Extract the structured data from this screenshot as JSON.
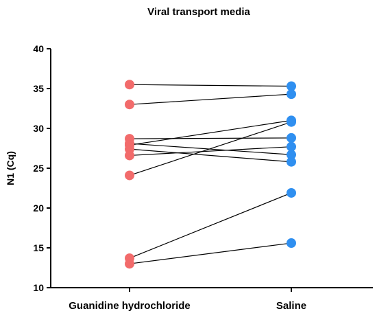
{
  "chart_data": {
    "type": "scatter",
    "title": "Viral transport media",
    "ylabel": "N1 (Cq)",
    "xlabel": "",
    "categories": [
      "Guanidine hydrochloride",
      "Saline"
    ],
    "ylim": [
      10,
      40
    ],
    "yticks": [
      10,
      15,
      20,
      25,
      30,
      35,
      40
    ],
    "grid": false,
    "legend": "none",
    "colors": {
      "Guanidine hydrochloride": "#f26b6b",
      "Saline": "#2f8ff0",
      "line": "#000000"
    },
    "pairs": [
      {
        "guanidine": 35.5,
        "saline": 35.3
      },
      {
        "guanidine": 33.0,
        "saline": 34.3
      },
      {
        "guanidine": 28.7,
        "saline": 28.8
      },
      {
        "guanidine": 28.1,
        "saline": 26.7
      },
      {
        "guanidine": 27.9,
        "saline": 31.0
      },
      {
        "guanidine": 27.4,
        "saline": 25.8
      },
      {
        "guanidine": 26.6,
        "saline": 27.7
      },
      {
        "guanidine": 24.1,
        "saline": 30.8
      },
      {
        "guanidine": 13.7,
        "saline": 21.9
      },
      {
        "guanidine": 13.0,
        "saline": 15.6
      }
    ]
  }
}
